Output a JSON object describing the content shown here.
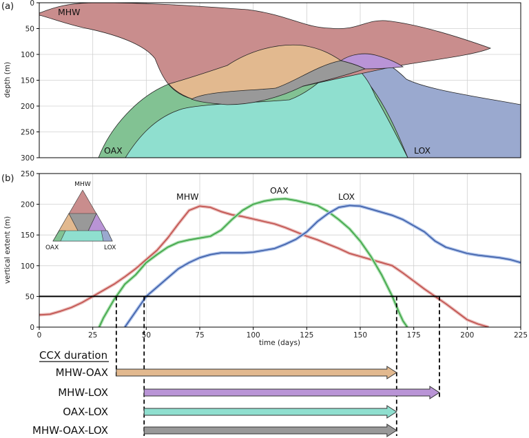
{
  "colors": {
    "mhw": "#c98d8d",
    "oax": "#e2b98f",
    "lox": "#9aa9cf",
    "mhw_oax": "#e2b98f",
    "mhw_lox": "#b994d6",
    "oax_lox": "#8fdfcf",
    "all": "#999999",
    "oax_only": "#82c293",
    "line_mhw": "#c0504d",
    "line_oax": "#3fa447",
    "line_lox": "#3f5fa8"
  },
  "panel_a": {
    "label": "(a)",
    "ylabel": "depth (m)",
    "ylim": [
      0,
      300
    ],
    "yticks": [
      "0",
      "50",
      "100",
      "150",
      "200",
      "250",
      "300"
    ],
    "region_labels": {
      "mhw": "MHW",
      "oax": "OAX",
      "lox": "LOX"
    }
  },
  "panel_b": {
    "label": "(b)",
    "ylabel": "vertical extent (m)",
    "xlabel": "time (days)",
    "xlim": [
      0,
      225
    ],
    "ylim": [
      0,
      250
    ],
    "xticks": [
      "0",
      "25",
      "50",
      "75",
      "100",
      "125",
      "150",
      "175",
      "200",
      "225"
    ],
    "yticks": [
      "0",
      "50",
      "100",
      "150",
      "200",
      "250"
    ],
    "threshold": 50,
    "series_labels": {
      "mhw": "MHW",
      "oax": "OAX",
      "lox": "LOX"
    },
    "inset_labels": {
      "top": "MHW",
      "left": "OAX",
      "right": "LOX"
    }
  },
  "ccx": {
    "title": "CCX duration",
    "rows": [
      {
        "label": "MHW-OAX",
        "start": 36,
        "end": 167
      },
      {
        "label": "MHW-LOX",
        "start": 49,
        "end": 187
      },
      {
        "label": "OAX-LOX",
        "start": 49,
        "end": 167
      },
      {
        "label": "MHW-OAX-LOX",
        "start": 49,
        "end": 167
      }
    ]
  },
  "chart_data": [
    {
      "type": "area",
      "panel": "a",
      "xlim": [
        0,
        225
      ],
      "ylim": [
        300,
        0
      ],
      "ylabel": "depth (m)",
      "grid": true,
      "series": [
        {
          "name": "MHW",
          "top": [
            [
              0,
              20
            ],
            [
              20,
              0
            ],
            [
              60,
              0
            ],
            [
              100,
              15
            ],
            [
              120,
              40
            ],
            [
              135,
              48
            ],
            [
              150,
              35
            ],
            [
              170,
              50
            ],
            [
              210,
              88
            ]
          ],
          "bottom": [
            [
              0,
              25
            ],
            [
              25,
              35
            ],
            [
              45,
              60
            ],
            [
              55,
              100
            ],
            [
              60,
              150
            ],
            [
              65,
              180
            ],
            [
              75,
              190
            ],
            [
              110,
              195
            ],
            [
              125,
              180
            ],
            [
              140,
              150
            ],
            [
              165,
              125
            ],
            [
              200,
              100
            ],
            [
              210,
              88
            ]
          ]
        },
        {
          "name": "OAX",
          "top": [
            [
              28,
              300
            ],
            [
              40,
              250
            ],
            [
              50,
              190
            ],
            [
              60,
              165
            ],
            [
              70,
              150
            ],
            [
              80,
              140
            ],
            [
              90,
              120
            ],
            [
              95,
              100
            ],
            [
              105,
              85
            ],
            [
              120,
              83
            ],
            [
              135,
              95
            ],
            [
              145,
              110
            ],
            [
              155,
              135
            ],
            [
              165,
              200
            ],
            [
              173,
              300
            ]
          ]
        },
        {
          "name": "LOX",
          "top": [
            [
              40,
              300
            ],
            [
              50,
              250
            ],
            [
              60,
              215
            ],
            [
              70,
              195
            ],
            [
              90,
              180
            ],
            [
              110,
              178
            ],
            [
              125,
              160
            ],
            [
              140,
              115
            ],
            [
              150,
              100
            ],
            [
              160,
              105
            ],
            [
              180,
              155
            ],
            [
              200,
              175
            ],
            [
              225,
              195
            ]
          ]
        }
      ]
    },
    {
      "type": "line",
      "panel": "b",
      "xlabel": "time (days)",
      "ylabel": "vertical extent (m)",
      "xlim": [
        0,
        225
      ],
      "ylim": [
        0,
        250
      ],
      "grid": true,
      "series": [
        {
          "name": "MHW",
          "x": [
            0,
            5,
            10,
            15,
            20,
            25,
            30,
            35,
            40,
            45,
            50,
            55,
            60,
            65,
            70,
            75,
            80,
            85,
            90,
            95,
            100,
            105,
            110,
            115,
            120,
            125,
            130,
            135,
            140,
            145,
            150,
            155,
            160,
            165,
            170,
            175,
            180,
            185,
            190,
            195,
            200,
            205,
            210
          ],
          "y": [
            20,
            21,
            26,
            32,
            40,
            50,
            60,
            70,
            82,
            95,
            110,
            125,
            145,
            168,
            190,
            197,
            195,
            188,
            183,
            180,
            176,
            172,
            168,
            162,
            155,
            148,
            142,
            135,
            128,
            120,
            115,
            110,
            105,
            100,
            88,
            75,
            62,
            50,
            38,
            25,
            12,
            5,
            0
          ]
        },
        {
          "name": "OAX",
          "x": [
            28,
            30,
            35,
            40,
            45,
            50,
            55,
            60,
            65,
            70,
            75,
            80,
            85,
            90,
            95,
            100,
            105,
            110,
            115,
            120,
            125,
            130,
            135,
            140,
            145,
            150,
            155,
            160,
            165,
            168,
            170,
            172
          ],
          "y": [
            0,
            15,
            45,
            70,
            85,
            105,
            118,
            130,
            138,
            142,
            145,
            148,
            158,
            175,
            190,
            200,
            205,
            208,
            209,
            206,
            202,
            198,
            188,
            175,
            160,
            140,
            115,
            85,
            50,
            25,
            10,
            0
          ]
        },
        {
          "name": "LOX",
          "x": [
            40,
            45,
            50,
            55,
            60,
            65,
            70,
            75,
            80,
            85,
            90,
            95,
            100,
            105,
            110,
            115,
            120,
            125,
            130,
            135,
            140,
            145,
            150,
            155,
            160,
            165,
            170,
            175,
            180,
            185,
            190,
            195,
            200,
            205,
            210,
            215,
            220,
            225
          ],
          "y": [
            0,
            25,
            50,
            65,
            80,
            95,
            105,
            113,
            118,
            121,
            121,
            121,
            122,
            125,
            128,
            135,
            143,
            155,
            172,
            185,
            195,
            198,
            197,
            192,
            187,
            182,
            175,
            165,
            155,
            140,
            130,
            125,
            120,
            117,
            115,
            113,
            110,
            105
          ]
        }
      ]
    }
  ]
}
